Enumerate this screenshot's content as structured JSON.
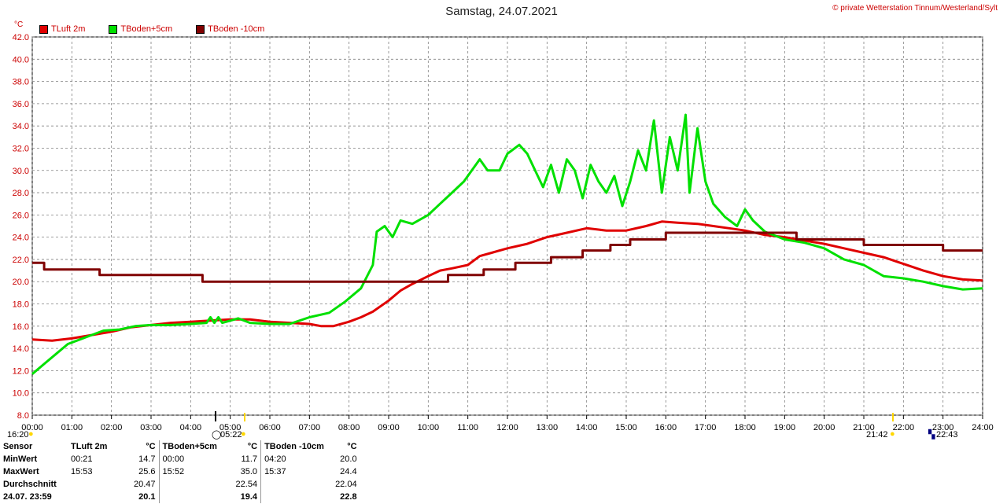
{
  "header": {
    "title": "Samstag, 24.07.2021",
    "copyright": "© private Wetterstation Tinnum/Westerland/Sylt",
    "unit": "°C"
  },
  "sun": {
    "sunrise_time": "05:22",
    "sunset_time": "21:42",
    "moon_time": "22:43",
    "left_time": "16:20"
  },
  "colors": {
    "tluft": "#e00000",
    "tboden5": "#00e000",
    "tboden10": "#800000",
    "grid": "#808080"
  },
  "chart_data": {
    "type": "line",
    "title": "Samstag, 24.07.2021",
    "ylabel": "°C",
    "ylim": [
      8,
      42
    ],
    "xlim": [
      0,
      24
    ],
    "grid": true,
    "legend_position": "top-left",
    "x_ticks": [
      "00:00",
      "01:00",
      "02:00",
      "03:00",
      "04:00",
      "05:00",
      "06:00",
      "07:00",
      "08:00",
      "09:00",
      "10:00",
      "11:00",
      "12:00",
      "13:00",
      "14:00",
      "15:00",
      "16:00",
      "17:00",
      "18:00",
      "19:00",
      "20:00",
      "21:00",
      "22:00",
      "23:00",
      "24:00"
    ],
    "y_ticks": [
      "8.0",
      "10.0",
      "12.0",
      "14.0",
      "16.0",
      "18.0",
      "20.0",
      "22.0",
      "24.0",
      "26.0",
      "28.0",
      "30.0",
      "32.0",
      "34.0",
      "36.0",
      "38.0",
      "40.0",
      "42.0"
    ],
    "series": [
      {
        "name": "TLuft 2m",
        "color": "#e00000",
        "points": [
          [
            0,
            14.8
          ],
          [
            0.5,
            14.7
          ],
          [
            1,
            14.9
          ],
          [
            1.5,
            15.2
          ],
          [
            2,
            15.5
          ],
          [
            2.5,
            15.9
          ],
          [
            3,
            16.1
          ],
          [
            3.5,
            16.3
          ],
          [
            4,
            16.4
          ],
          [
            4.5,
            16.5
          ],
          [
            5,
            16.6
          ],
          [
            5.5,
            16.6
          ],
          [
            6,
            16.4
          ],
          [
            6.5,
            16.3
          ],
          [
            7,
            16.2
          ],
          [
            7.3,
            16.0
          ],
          [
            7.6,
            16.0
          ],
          [
            8,
            16.4
          ],
          [
            8.3,
            16.8
          ],
          [
            8.6,
            17.3
          ],
          [
            9,
            18.3
          ],
          [
            9.3,
            19.2
          ],
          [
            9.6,
            19.8
          ],
          [
            10,
            20.5
          ],
          [
            10.3,
            21.0
          ],
          [
            10.6,
            21.2
          ],
          [
            11,
            21.5
          ],
          [
            11.3,
            22.3
          ],
          [
            11.6,
            22.6
          ],
          [
            12,
            23.0
          ],
          [
            12.5,
            23.4
          ],
          [
            13,
            24.0
          ],
          [
            13.5,
            24.4
          ],
          [
            14,
            24.8
          ],
          [
            14.5,
            24.6
          ],
          [
            15,
            24.6
          ],
          [
            15.5,
            25.0
          ],
          [
            15.9,
            25.4
          ],
          [
            16.3,
            25.3
          ],
          [
            16.8,
            25.2
          ],
          [
            17.2,
            25.0
          ],
          [
            17.6,
            24.8
          ],
          [
            18,
            24.6
          ],
          [
            18.5,
            24.2
          ],
          [
            19,
            24.0
          ],
          [
            19.5,
            23.7
          ],
          [
            20,
            23.4
          ],
          [
            20.5,
            23.0
          ],
          [
            21,
            22.6
          ],
          [
            21.5,
            22.2
          ],
          [
            22,
            21.6
          ],
          [
            22.5,
            21.0
          ],
          [
            23,
            20.5
          ],
          [
            23.5,
            20.2
          ],
          [
            24,
            20.1
          ]
        ]
      },
      {
        "name": "TBoden+5cm",
        "color": "#00e000",
        "points": [
          [
            0,
            11.7
          ],
          [
            0.3,
            12.6
          ],
          [
            0.6,
            13.5
          ],
          [
            0.9,
            14.4
          ],
          [
            1.2,
            14.8
          ],
          [
            1.5,
            15.2
          ],
          [
            1.8,
            15.6
          ],
          [
            2.2,
            15.7
          ],
          [
            2.6,
            16.0
          ],
          [
            3,
            16.1
          ],
          [
            3.5,
            16.1
          ],
          [
            4,
            16.2
          ],
          [
            4.4,
            16.3
          ],
          [
            4.5,
            16.8
          ],
          [
            4.6,
            16.3
          ],
          [
            4.7,
            16.8
          ],
          [
            4.8,
            16.3
          ],
          [
            5,
            16.5
          ],
          [
            5.2,
            16.7
          ],
          [
            5.5,
            16.3
          ],
          [
            6,
            16.2
          ],
          [
            6.5,
            16.2
          ],
          [
            7,
            16.8
          ],
          [
            7.5,
            17.2
          ],
          [
            7.9,
            18.2
          ],
          [
            8.3,
            19.4
          ],
          [
            8.6,
            21.5
          ],
          [
            8.7,
            24.5
          ],
          [
            8.9,
            25.0
          ],
          [
            9.1,
            24.0
          ],
          [
            9.3,
            25.5
          ],
          [
            9.6,
            25.2
          ],
          [
            10,
            26.0
          ],
          [
            10.3,
            27.0
          ],
          [
            10.6,
            28.0
          ],
          [
            10.9,
            29.0
          ],
          [
            11.1,
            30.0
          ],
          [
            11.3,
            31.0
          ],
          [
            11.5,
            30.0
          ],
          [
            11.8,
            30.0
          ],
          [
            12,
            31.5
          ],
          [
            12.3,
            32.3
          ],
          [
            12.5,
            31.5
          ],
          [
            12.7,
            30.0
          ],
          [
            12.9,
            28.5
          ],
          [
            13.1,
            30.5
          ],
          [
            13.3,
            28.0
          ],
          [
            13.5,
            31.0
          ],
          [
            13.7,
            30.0
          ],
          [
            13.9,
            27.5
          ],
          [
            14.1,
            30.5
          ],
          [
            14.3,
            29.0
          ],
          [
            14.5,
            28.0
          ],
          [
            14.7,
            29.5
          ],
          [
            14.9,
            26.8
          ],
          [
            15.1,
            29.0
          ],
          [
            15.3,
            31.8
          ],
          [
            15.5,
            30.0
          ],
          [
            15.7,
            34.5
          ],
          [
            15.9,
            28.0
          ],
          [
            16.1,
            33.0
          ],
          [
            16.3,
            30.0
          ],
          [
            16.5,
            35.0
          ],
          [
            16.6,
            28.0
          ],
          [
            16.8,
            33.8
          ],
          [
            17.0,
            29.0
          ],
          [
            17.2,
            27.0
          ],
          [
            17.5,
            25.8
          ],
          [
            17.8,
            25.0
          ],
          [
            18.0,
            26.5
          ],
          [
            18.2,
            25.5
          ],
          [
            18.5,
            24.5
          ],
          [
            19,
            23.8
          ],
          [
            19.5,
            23.5
          ],
          [
            20,
            23.0
          ],
          [
            20.5,
            22.0
          ],
          [
            21,
            21.5
          ],
          [
            21.5,
            20.5
          ],
          [
            22,
            20.3
          ],
          [
            22.5,
            20.0
          ],
          [
            23,
            19.6
          ],
          [
            23.5,
            19.3
          ],
          [
            24,
            19.4
          ]
        ]
      },
      {
        "name": "TBoden -10cm",
        "color": "#800000",
        "points": [
          [
            0,
            21.7
          ],
          [
            0.3,
            21.7
          ],
          [
            0.3,
            21.1
          ],
          [
            1.7,
            21.1
          ],
          [
            1.7,
            20.6
          ],
          [
            4.3,
            20.6
          ],
          [
            4.3,
            20.0
          ],
          [
            10.5,
            20.0
          ],
          [
            10.5,
            20.6
          ],
          [
            11.4,
            20.6
          ],
          [
            11.4,
            21.1
          ],
          [
            12.2,
            21.1
          ],
          [
            12.2,
            21.7
          ],
          [
            13.1,
            21.7
          ],
          [
            13.1,
            22.2
          ],
          [
            13.9,
            22.2
          ],
          [
            13.9,
            22.8
          ],
          [
            14.6,
            22.8
          ],
          [
            14.6,
            23.3
          ],
          [
            15.1,
            23.3
          ],
          [
            15.1,
            23.8
          ],
          [
            16.0,
            23.8
          ],
          [
            16.0,
            24.4
          ],
          [
            19.3,
            24.4
          ],
          [
            19.3,
            23.8
          ],
          [
            21.0,
            23.8
          ],
          [
            21.0,
            23.3
          ],
          [
            23.0,
            23.3
          ],
          [
            23.0,
            22.8
          ],
          [
            24,
            22.8
          ]
        ]
      }
    ]
  },
  "stats": {
    "headers": [
      "Sensor",
      "TLuft 2m",
      "°C",
      "TBoden+5cm",
      "°C",
      "TBoden -10cm",
      "°C"
    ],
    "rows": [
      {
        "label": "MinWert",
        "t1": "00:21",
        "v1": "14.7",
        "t2": "00:00",
        "v2": "11.7",
        "t3": "04:20",
        "v3": "20.0"
      },
      {
        "label": "MaxWert",
        "t1": "15:53",
        "v1": "25.6",
        "t2": "15:52",
        "v2": "35.0",
        "t3": "15:37",
        "v3": "24.4"
      },
      {
        "label": "Durchschnitt",
        "t1": "",
        "v1": "20.47",
        "t2": "",
        "v2": "22.54",
        "t3": "",
        "v3": "22.04"
      },
      {
        "label": "24.07. 23:59",
        "t1": "",
        "v1": "20.1",
        "t2": "",
        "v2": "19.4",
        "t3": "",
        "v3": "22.8"
      }
    ]
  }
}
